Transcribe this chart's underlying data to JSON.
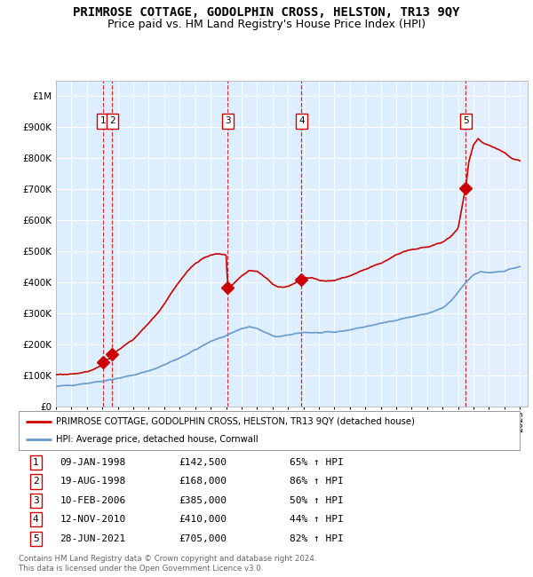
{
  "title": "PRIMROSE COTTAGE, GODOLPHIN CROSS, HELSTON, TR13 9QY",
  "subtitle": "Price paid vs. HM Land Registry's House Price Index (HPI)",
  "title_fontsize": 10,
  "subtitle_fontsize": 9,
  "background_color": "#ffffff",
  "plot_bg_color": "#ddeeff",
  "ylim": [
    0,
    1050000
  ],
  "yticks": [
    0,
    100000,
    200000,
    300000,
    400000,
    500000,
    600000,
    700000,
    800000,
    900000,
    1000000
  ],
  "ytick_labels": [
    "£0",
    "£100K",
    "£200K",
    "£300K",
    "£400K",
    "£500K",
    "£600K",
    "£700K",
    "£800K",
    "£900K",
    "£1M"
  ],
  "xlim_start": 1995.0,
  "xlim_end": 2025.5,
  "xticks": [
    1995,
    1996,
    1997,
    1998,
    1999,
    2000,
    2001,
    2002,
    2003,
    2004,
    2005,
    2006,
    2007,
    2008,
    2009,
    2010,
    2011,
    2012,
    2013,
    2014,
    2015,
    2016,
    2017,
    2018,
    2019,
    2020,
    2021,
    2022,
    2023,
    2024,
    2025
  ],
  "sale_dates": [
    1998.03,
    1998.63,
    2006.11,
    2010.87,
    2021.49
  ],
  "sale_prices": [
    142500,
    168000,
    385000,
    410000,
    705000
  ],
  "sale_numbers": [
    "1",
    "2",
    "3",
    "4",
    "5"
  ],
  "hpi_color": "#6699cc",
  "price_color": "#cc0000",
  "sale_marker_color": "#cc0000",
  "vline_color": "#cc0000",
  "legend_line1": "PRIMROSE COTTAGE, GODOLPHIN CROSS, HELSTON, TR13 9QY (detached house)",
  "legend_line2": "HPI: Average price, detached house, Cornwall",
  "table_data": [
    [
      "1",
      "09-JAN-1998",
      "£142,500",
      "65% ↑ HPI"
    ],
    [
      "2",
      "19-AUG-1998",
      "£168,000",
      "86% ↑ HPI"
    ],
    [
      "3",
      "10-FEB-2006",
      "£385,000",
      "50% ↑ HPI"
    ],
    [
      "4",
      "12-NOV-2010",
      "£410,000",
      "44% ↑ HPI"
    ],
    [
      "5",
      "28-JUN-2021",
      "£705,000",
      "82% ↑ HPI"
    ]
  ],
  "footnote": "Contains HM Land Registry data © Crown copyright and database right 2024.\nThis data is licensed under the Open Government Licence v3.0.",
  "grid_color": "#ffffff",
  "box_color": "#cc0000"
}
